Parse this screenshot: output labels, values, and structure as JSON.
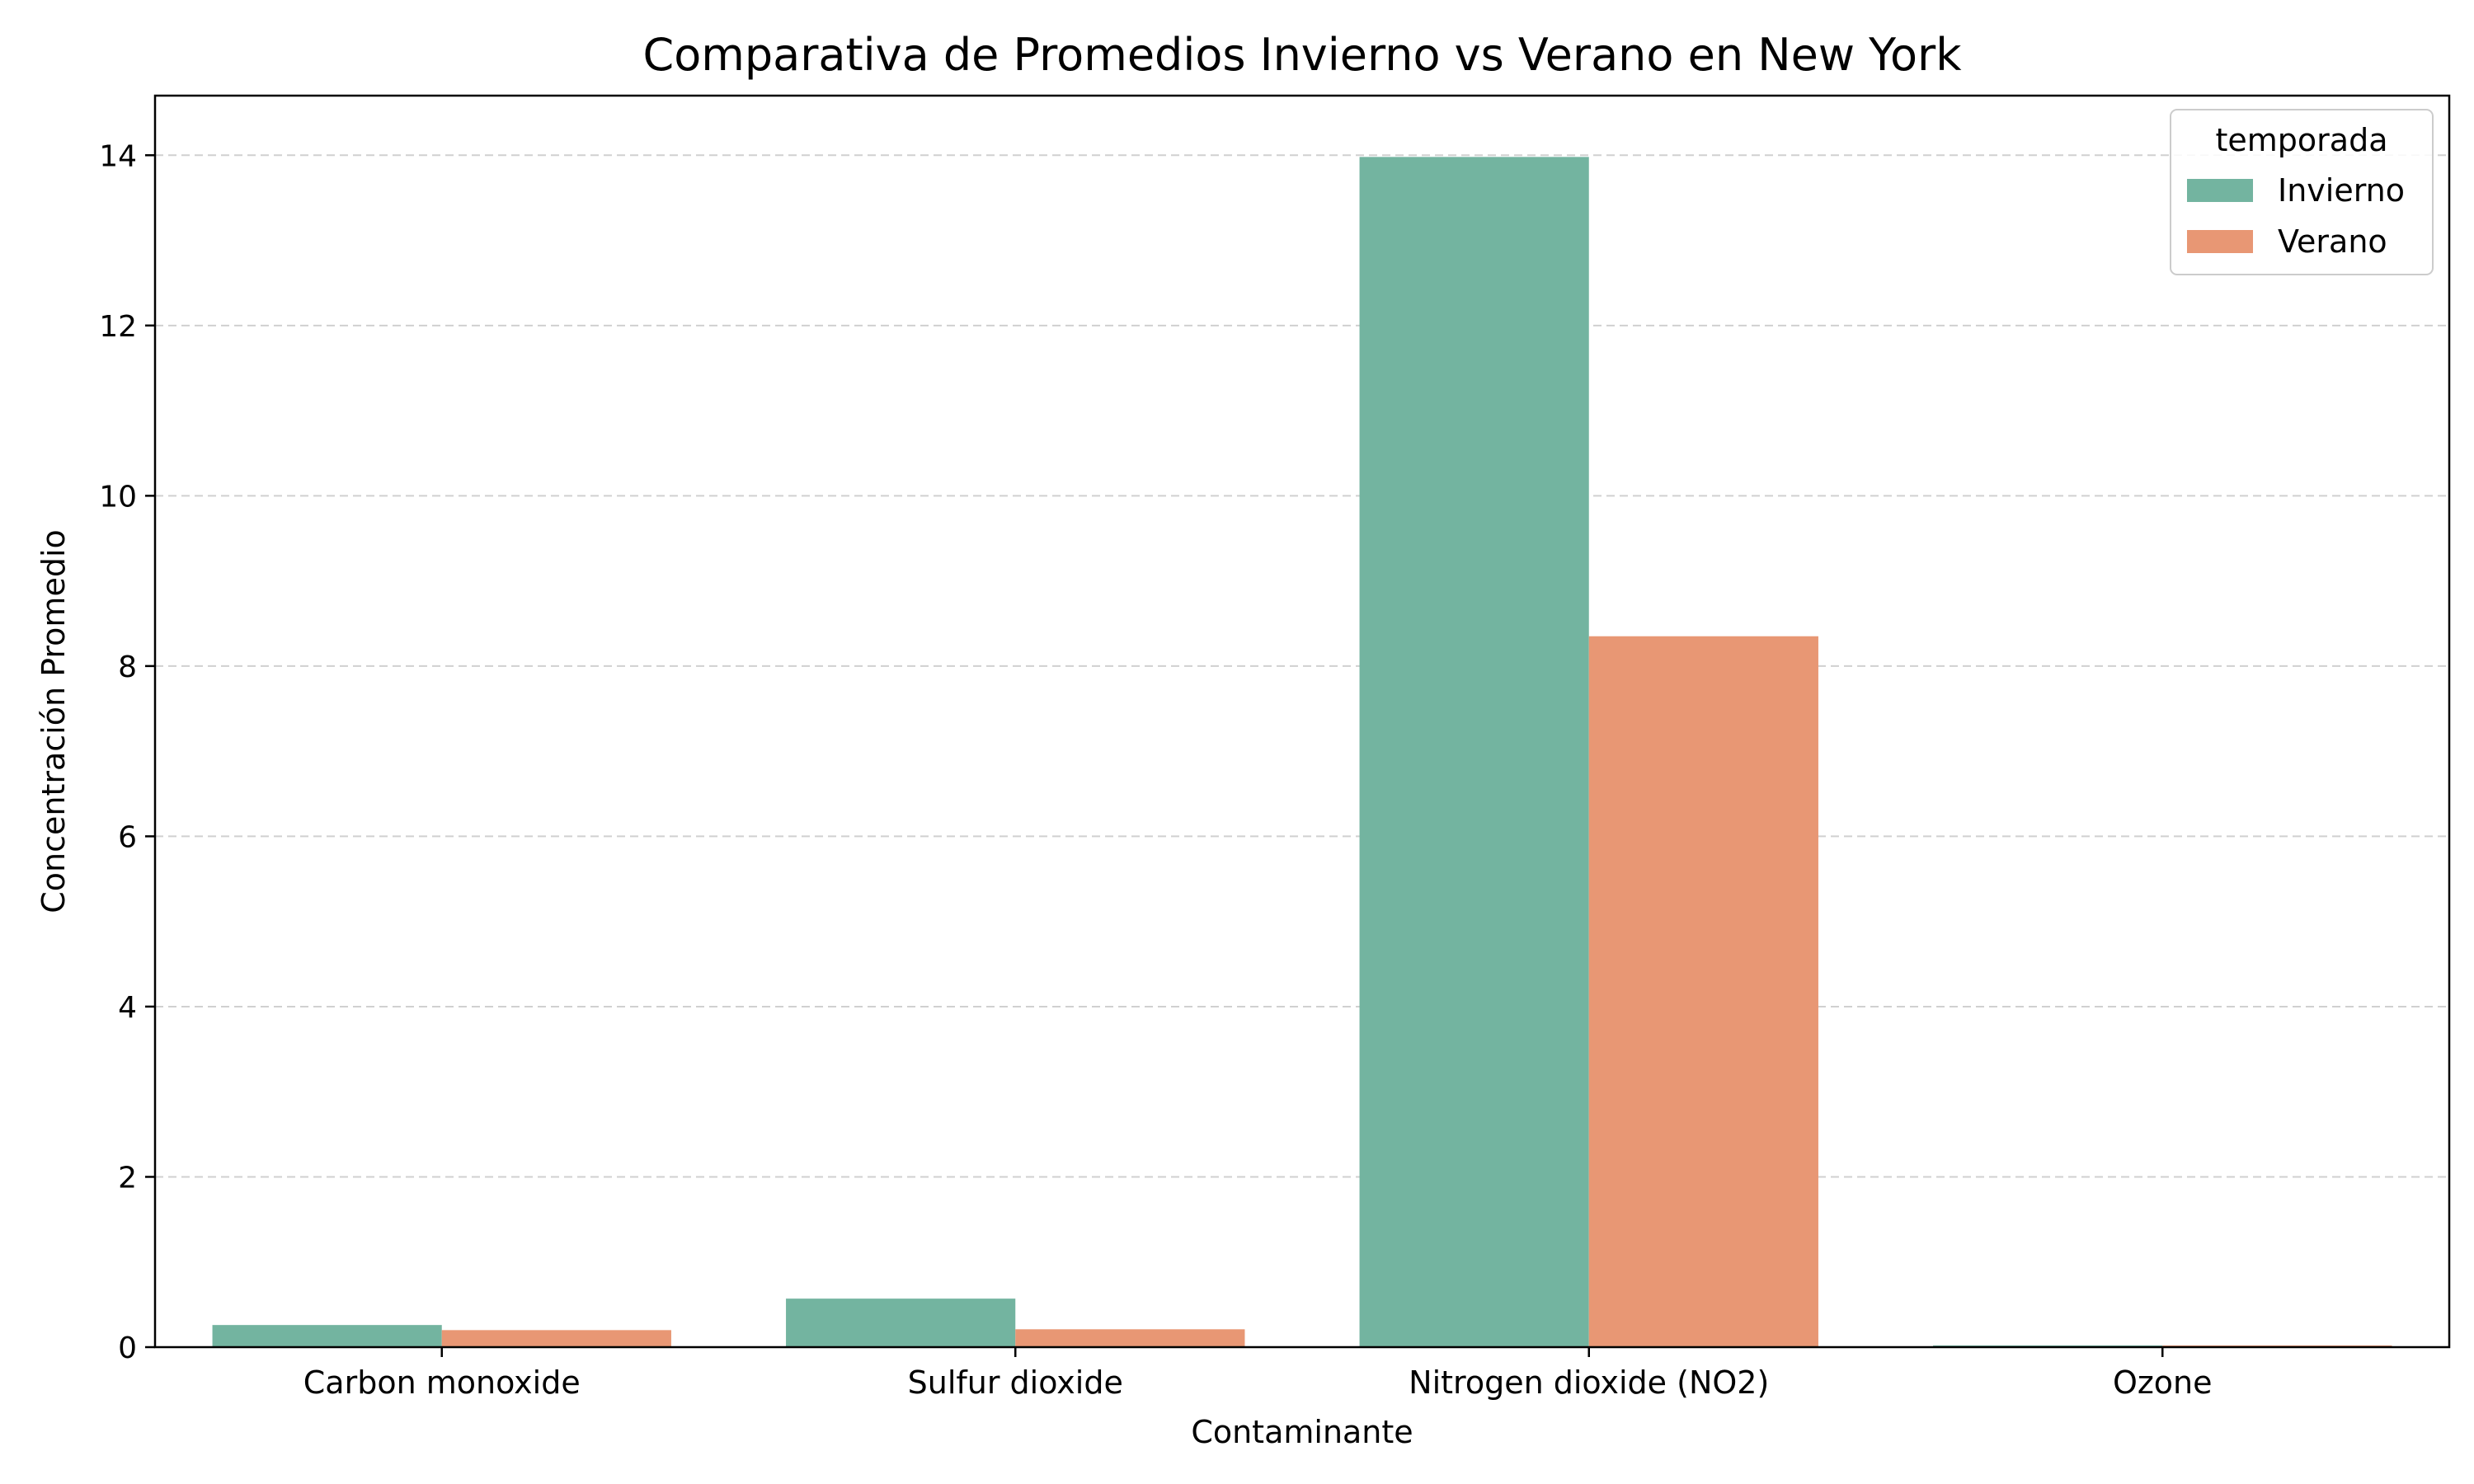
{
  "chart_data": {
    "type": "bar",
    "title": "Comparativa de Promedios Invierno vs Verano en New York",
    "xlabel": "Contaminante",
    "ylabel": "Concentración Promedio",
    "categories": [
      "Carbon monoxide",
      "Sulfur dioxide",
      "Nitrogen dioxide (NO2)",
      "Ozone"
    ],
    "series": [
      {
        "name": "Invierno",
        "color": "#73b4a0",
        "values": [
          0.26,
          0.57,
          13.98,
          0.02
        ]
      },
      {
        "name": "Verano",
        "color": "#e89774",
        "values": [
          0.2,
          0.21,
          8.35,
          0.02
        ]
      }
    ],
    "ylim": [
      0,
      14.7
    ],
    "yticks": [
      0,
      2,
      4,
      6,
      8,
      10,
      12,
      14
    ],
    "grid": {
      "axis": "y",
      "style": "dashed"
    },
    "legend": {
      "title": "temporada",
      "placement": "top-right"
    }
  }
}
